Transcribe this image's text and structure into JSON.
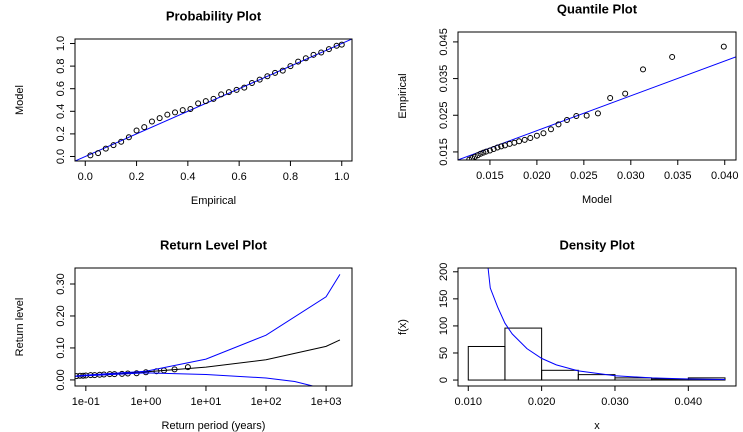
{
  "chart_data": [
    {
      "type": "scatter",
      "title": "Probability Plot",
      "xlabel": "Empirical",
      "ylabel": "Model",
      "xlim": [
        -0.04,
        1.04
      ],
      "ylim": [
        -0.04,
        1.04
      ],
      "xticks": [
        {
          "value": 0,
          "label": "0.0"
        },
        0.2,
        0.4,
        0.6,
        0.8,
        {
          "value": 1,
          "label": "1.0"
        }
      ],
      "yticks": [
        {
          "value": 0,
          "label": "0.0"
        },
        0.2,
        0.4,
        0.6,
        0.8,
        {
          "value": 1,
          "label": "1.0"
        }
      ],
      "abline": {
        "intercept": 0,
        "slope": 1,
        "color": "#0000ff"
      },
      "series": [
        {
          "style": "points",
          "color": "#000000",
          "x": [
            0.02,
            0.05,
            0.08,
            0.11,
            0.14,
            0.17,
            0.2,
            0.23,
            0.26,
            0.29,
            0.32,
            0.35,
            0.38,
            0.41,
            0.44,
            0.47,
            0.5,
            0.53,
            0.56,
            0.59,
            0.62,
            0.65,
            0.68,
            0.71,
            0.74,
            0.77,
            0.8,
            0.83,
            0.86,
            0.89,
            0.92,
            0.95,
            0.98,
            1.0
          ],
          "values": [
            0.01,
            0.03,
            0.07,
            0.1,
            0.13,
            0.17,
            0.23,
            0.26,
            0.31,
            0.34,
            0.37,
            0.39,
            0.41,
            0.42,
            0.47,
            0.49,
            0.51,
            0.55,
            0.57,
            0.59,
            0.61,
            0.65,
            0.68,
            0.71,
            0.74,
            0.76,
            0.8,
            0.84,
            0.87,
            0.9,
            0.92,
            0.95,
            0.98,
            0.99
          ]
        }
      ]
    },
    {
      "type": "scatter",
      "title": "Quantile Plot",
      "xlabel": "Model",
      "ylabel": "Empirical",
      "xlim": [
        0.0116,
        0.0412
      ],
      "ylim": [
        0.0128,
        0.0477
      ],
      "xticks": [
        0.015,
        {
          "value": 0.02,
          "label": "0.020"
        },
        0.025,
        {
          "value": 0.03,
          "label": "0.030"
        },
        0.035,
        {
          "value": 0.04,
          "label": "0.040"
        }
      ],
      "yticks": [
        0.015,
        0.025,
        0.035,
        0.045
      ],
      "abline": {
        "intercept": 0.0018,
        "slope": 0.95,
        "color": "#0000ff"
      },
      "series": [
        {
          "style": "points",
          "color": "#000000",
          "x": [
            0.0128,
            0.0131,
            0.0134,
            0.0137,
            0.014,
            0.0143,
            0.0146,
            0.015,
            0.0154,
            0.0158,
            0.0162,
            0.0166,
            0.0171,
            0.0176,
            0.0181,
            0.0187,
            0.0193,
            0.02,
            0.0207,
            0.0215,
            0.0223,
            0.0232,
            0.0242,
            0.0253,
            0.0265,
            0.0278,
            0.0294,
            0.0313,
            0.0344,
            0.0399
          ],
          "values": [
            0.0129,
            0.0133,
            0.0137,
            0.0141,
            0.0145,
            0.0148,
            0.0151,
            0.0154,
            0.0158,
            0.0162,
            0.0165,
            0.0168,
            0.0172,
            0.0175,
            0.0179,
            0.0183,
            0.0188,
            0.0194,
            0.0201,
            0.0212,
            0.0225,
            0.0237,
            0.0248,
            0.0249,
            0.0255,
            0.0297,
            0.0309,
            0.0375,
            0.0409,
            0.0437
          ]
        }
      ]
    },
    {
      "type": "scatter",
      "title": "Return Level Plot",
      "xlabel": "Return period (years)",
      "ylabel": "Return level",
      "log": "x",
      "xlim": [
        0.066,
        2700
      ],
      "ylim": [
        -0.019,
        0.35
      ],
      "xticks": [
        {
          "value": 0.1,
          "label": "1e-01"
        },
        {
          "value": 1,
          "label": "1e+00"
        },
        {
          "value": 10,
          "label": "1e+01"
        },
        {
          "value": 100,
          "label": "1e+02"
        },
        {
          "value": 1000,
          "label": "1e+03"
        }
      ],
      "yticks": [
        {
          "value": 0,
          "label": "0.00"
        },
        {
          "value": 0.1,
          "label": "0.10"
        },
        {
          "value": 0.2,
          "label": "0.20"
        },
        {
          "value": 0.3,
          "label": "0.30"
        }
      ],
      "series": [
        {
          "style": "points",
          "color": "#000000",
          "x": [
            0.07,
            0.08,
            0.09,
            0.1,
            0.12,
            0.14,
            0.17,
            0.2,
            0.25,
            0.3,
            0.4,
            0.5,
            0.7,
            1,
            1.5,
            2,
            3,
            5
          ],
          "values": [
            0.012,
            0.013,
            0.013,
            0.014,
            0.015,
            0.015,
            0.016,
            0.017,
            0.018,
            0.018,
            0.019,
            0.02,
            0.021,
            0.024,
            0.027,
            0.03,
            0.033,
            0.04
          ]
        },
        {
          "style": "line",
          "color": "#000000",
          "x": [
            0.066,
            0.1,
            1,
            10,
            100,
            1000,
            1700
          ],
          "values": [
            0.012,
            0.014,
            0.025,
            0.04,
            0.063,
            0.105,
            0.125
          ]
        },
        {
          "style": "line",
          "color": "#0000ff",
          "x": [
            0.066,
            0.1,
            1,
            10,
            100,
            1000,
            1700
          ],
          "values": [
            0.012,
            0.015,
            0.027,
            0.065,
            0.14,
            0.26,
            0.33
          ]
        },
        {
          "style": "line",
          "color": "#0000ff",
          "x": [
            0.066,
            0.1,
            1,
            10,
            100,
            300,
            600
          ],
          "values": [
            0.011,
            0.013,
            0.022,
            0.017,
            0.006,
            -0.005,
            -0.019
          ]
        }
      ]
    },
    {
      "type": "histogram",
      "title": "Density Plot",
      "xlabel": "x",
      "ylabel": "f(x)",
      "xlim": [
        0.0086,
        0.0465
      ],
      "ylim": [
        -11,
        207
      ],
      "xticks": [
        {
          "value": 0.01,
          "label": "0.010"
        },
        {
          "value": 0.02,
          "label": "0.020"
        },
        {
          "value": 0.03,
          "label": "0.030"
        },
        {
          "value": 0.04,
          "label": "0.040"
        }
      ],
      "yticks": [
        0,
        50,
        100,
        150,
        200
      ],
      "bins": [
        0.01,
        0.015,
        0.02,
        0.025,
        0.03,
        0.035,
        0.04,
        0.045
      ],
      "values": [
        62,
        96,
        18,
        10,
        4,
        2,
        4
      ],
      "series": [
        {
          "style": "line",
          "color": "#0000ff",
          "x": [
            0.0127,
            0.013,
            0.014,
            0.015,
            0.016,
            0.018,
            0.02,
            0.022,
            0.025,
            0.03,
            0.035,
            0.04,
            0.045
          ],
          "values": [
            207,
            170,
            135,
            105,
            85,
            58,
            40,
            28,
            17,
            8,
            4,
            2,
            1
          ]
        }
      ]
    }
  ]
}
